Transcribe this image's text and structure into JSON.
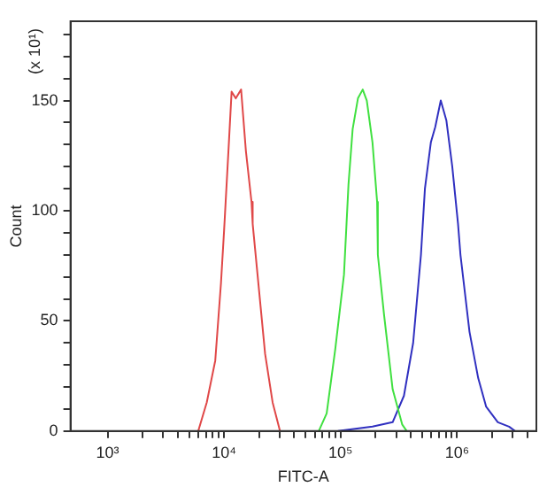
{
  "chart_data": {
    "type": "line",
    "xlabel": "FITC-A",
    "ylabel": "Count",
    "annotations": [
      "(x 10¹)"
    ],
    "log": "x",
    "grid": false,
    "legend": false,
    "marker": "none",
    "line_style": "solid",
    "xlim": [
      480,
      4800000
    ],
    "ylim": [
      0,
      186
    ],
    "xticks": [
      {
        "value": 1000,
        "label": "10³"
      },
      {
        "value": 2000,
        "label": null
      },
      {
        "value": 3000,
        "label": null
      },
      {
        "value": 4000,
        "label": null
      },
      {
        "value": 5000,
        "label": null
      },
      {
        "value": 6000,
        "label": null
      },
      {
        "value": 7000,
        "label": null
      },
      {
        "value": 8000,
        "label": null
      },
      {
        "value": 9000,
        "label": null
      },
      {
        "value": 10000,
        "label": "10⁴"
      },
      {
        "value": 20000,
        "label": null
      },
      {
        "value": 30000,
        "label": null
      },
      {
        "value": 40000,
        "label": null
      },
      {
        "value": 50000,
        "label": null
      },
      {
        "value": 60000,
        "label": null
      },
      {
        "value": 70000,
        "label": null
      },
      {
        "value": 80000,
        "label": null
      },
      {
        "value": 90000,
        "label": null
      },
      {
        "value": 100000,
        "label": "10⁵"
      },
      {
        "value": 200000,
        "label": null
      },
      {
        "value": 300000,
        "label": null
      },
      {
        "value": 400000,
        "label": null
      },
      {
        "value": 500000,
        "label": null
      },
      {
        "value": 600000,
        "label": null
      },
      {
        "value": 700000,
        "label": null
      },
      {
        "value": 800000,
        "label": null
      },
      {
        "value": 900000,
        "label": null
      },
      {
        "value": 1000000,
        "label": "10⁶"
      },
      {
        "value": 2000000,
        "label": null
      },
      {
        "value": 3000000,
        "label": null
      },
      {
        "value": 4000000,
        "label": null
      }
    ],
    "yticks": [
      0,
      {
        "value": 10,
        "label": null
      },
      {
        "value": 20,
        "label": null
      },
      {
        "value": 30,
        "label": null
      },
      {
        "value": 40,
        "label": null
      },
      50,
      {
        "value": 60,
        "label": null
      },
      {
        "value": 70,
        "label": null
      },
      {
        "value": 80,
        "label": null
      },
      {
        "value": 90,
        "label": null
      },
      100,
      {
        "value": 110,
        "label": null
      },
      {
        "value": 120,
        "label": null
      },
      {
        "value": 130,
        "label": null
      },
      {
        "value": 140,
        "label": null
      },
      150,
      {
        "value": 160,
        "label": null
      },
      {
        "value": 170,
        "label": null
      },
      {
        "value": 180,
        "label": null
      }
    ],
    "series": [
      {
        "color": "#e04848",
        "x": [
          6000,
          7100,
          8400,
          9400,
          10000,
          11000,
          11600,
          12600,
          14000,
          15400,
          17200,
          17600,
          19700,
          22500,
          26100,
          30200
        ],
        "values": [
          0,
          13,
          32,
          67,
          91,
          131,
          154,
          151,
          155,
          127,
          104,
          94,
          67,
          35,
          13,
          0
        ]
      },
      {
        "color": "#40e040",
        "x": [
          65000,
          76000,
          90000,
          107000,
          117000,
          127000,
          141000,
          155000,
          168000,
          188000,
          206000,
          209000,
          236000,
          280000,
          338000,
          370000
        ],
        "values": [
          0,
          8,
          37,
          71,
          112,
          137,
          151,
          155,
          150,
          131,
          104,
          80,
          53,
          19,
          3,
          0
        ]
      },
      {
        "color": "#3030c0",
        "x": [
          95000,
          188000,
          280000,
          350000,
          420000,
          490000,
          530000,
          596000,
          650000,
          725000,
          810000,
          910000,
          1020000,
          1070000,
          1280000,
          1520000,
          1780000,
          2240000,
          2800000,
          3150000
        ],
        "values": [
          0,
          2,
          4,
          16,
          40,
          80,
          110,
          131,
          138,
          150,
          141,
          120,
          94,
          80,
          45,
          24,
          11,
          4,
          2,
          0
        ]
      }
    ]
  }
}
